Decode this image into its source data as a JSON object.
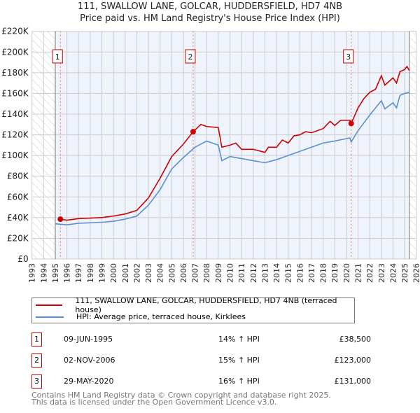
{
  "chart_data": {
    "type": "line",
    "title": "111, SWALLOW LANE, GOLCAR, HUDDERSFIELD, HD7 4NB",
    "subtitle": "Price paid vs. HM Land Registry's House Price Index (HPI)",
    "xlim": [
      1993,
      2026
    ],
    "ylim": [
      0,
      220000
    ],
    "x_ticks": [
      1993,
      1994,
      1995,
      1996,
      1997,
      1998,
      1999,
      2000,
      2001,
      2002,
      2003,
      2004,
      2005,
      2006,
      2007,
      2008,
      2009,
      2010,
      2011,
      2012,
      2013,
      2014,
      2015,
      2016,
      2017,
      2018,
      2019,
      2020,
      2021,
      2022,
      2023,
      2024,
      2025,
      2026
    ],
    "y_ticks": [
      0,
      20000,
      40000,
      60000,
      80000,
      100000,
      120000,
      140000,
      160000,
      180000,
      200000,
      220000
    ],
    "y_tick_labels": [
      "£0",
      "£20K",
      "£40K",
      "£60K",
      "£80K",
      "£100K",
      "£120K",
      "£140K",
      "£160K",
      "£180K",
      "£200K",
      "£220K"
    ],
    "grid": true,
    "series": [
      {
        "name": "111, SWALLOW LANE, GOLCAR, HUDDERSFIELD, HD7 4NB (terraced house)",
        "color": "#cc0000",
        "x": [
          1995.44,
          1996,
          1997,
          1998,
          1999,
          2000,
          2001,
          2002,
          2003,
          2004,
          2005,
          2006,
          2006.84,
          2007.5,
          2008,
          2009,
          2009.3,
          2010,
          2010.5,
          2011,
          2012,
          2013,
          2013.3,
          2014,
          2014.5,
          2015,
          2015.5,
          2016,
          2016.5,
          2017,
          2018,
          2018.6,
          2019,
          2019.5,
          2020.3,
          2020.41,
          2021,
          2021.5,
          2022,
          2022.5,
          2023,
          2023.3,
          2024,
          2024.3,
          2024.6,
          2025,
          2025.2,
          2025.4
        ],
        "y": [
          38500,
          37500,
          39000,
          39500,
          40000,
          41500,
          43500,
          47000,
          59000,
          78000,
          99000,
          111000,
          123000,
          130000,
          128000,
          127000,
          108000,
          110000,
          112000,
          106000,
          106000,
          103000,
          108000,
          108000,
          115000,
          112000,
          119000,
          120000,
          123000,
          122000,
          126000,
          133000,
          129000,
          134000,
          134000,
          131000,
          146000,
          155000,
          161000,
          164000,
          177000,
          168000,
          175000,
          170000,
          181000,
          183000,
          186000,
          182000
        ]
      },
      {
        "name": "HPI: Average price, terraced house, Kirklees",
        "color": "#5b8fd0",
        "x": [
          1995,
          1996,
          1997,
          1998,
          1999,
          2000,
          2001,
          2002,
          2003,
          2004,
          2005,
          2006,
          2007,
          2008,
          2009,
          2009.3,
          2010,
          2011,
          2012,
          2013,
          2014,
          2015,
          2016,
          2017,
          2018,
          2019,
          2020.3,
          2020.41,
          2021,
          2022,
          2023,
          2023.3,
          2024,
          2024.3,
          2024.6,
          2025,
          2025.4
        ],
        "y": [
          34000,
          33000,
          34500,
          35000,
          35500,
          36500,
          38500,
          41500,
          52000,
          67000,
          87000,
          98000,
          108000,
          114000,
          110000,
          95000,
          99000,
          97000,
          95000,
          93000,
          96000,
          100000,
          104000,
          108000,
          112000,
          114000,
          117000,
          113000,
          124000,
          139000,
          153000,
          145000,
          151000,
          146000,
          158000,
          160000,
          161000
        ]
      }
    ],
    "sales": [
      {
        "label": "1",
        "x": 1995.44,
        "y": 38500,
        "date": "09-JUN-1995",
        "price": "£38,500",
        "hpi": "14% ↑ HPI"
      },
      {
        "label": "2",
        "x": 2006.84,
        "y": 123000,
        "date": "02-NOV-2006",
        "price": "£123,000",
        "hpi": "15% ↑ HPI"
      },
      {
        "label": "3",
        "x": 2020.41,
        "y": 131000,
        "date": "29-MAY-2020",
        "price": "£131,000",
        "hpi": "16% ↑ HPI"
      }
    ],
    "shaded_range": [
      1995,
      2025.4
    ],
    "legend_position": "below"
  },
  "footer": {
    "line1": "Contains HM Land Registry data © Crown copyright and database right 2025.",
    "line2": "This data is licensed under the Open Government Licence v3.0."
  }
}
